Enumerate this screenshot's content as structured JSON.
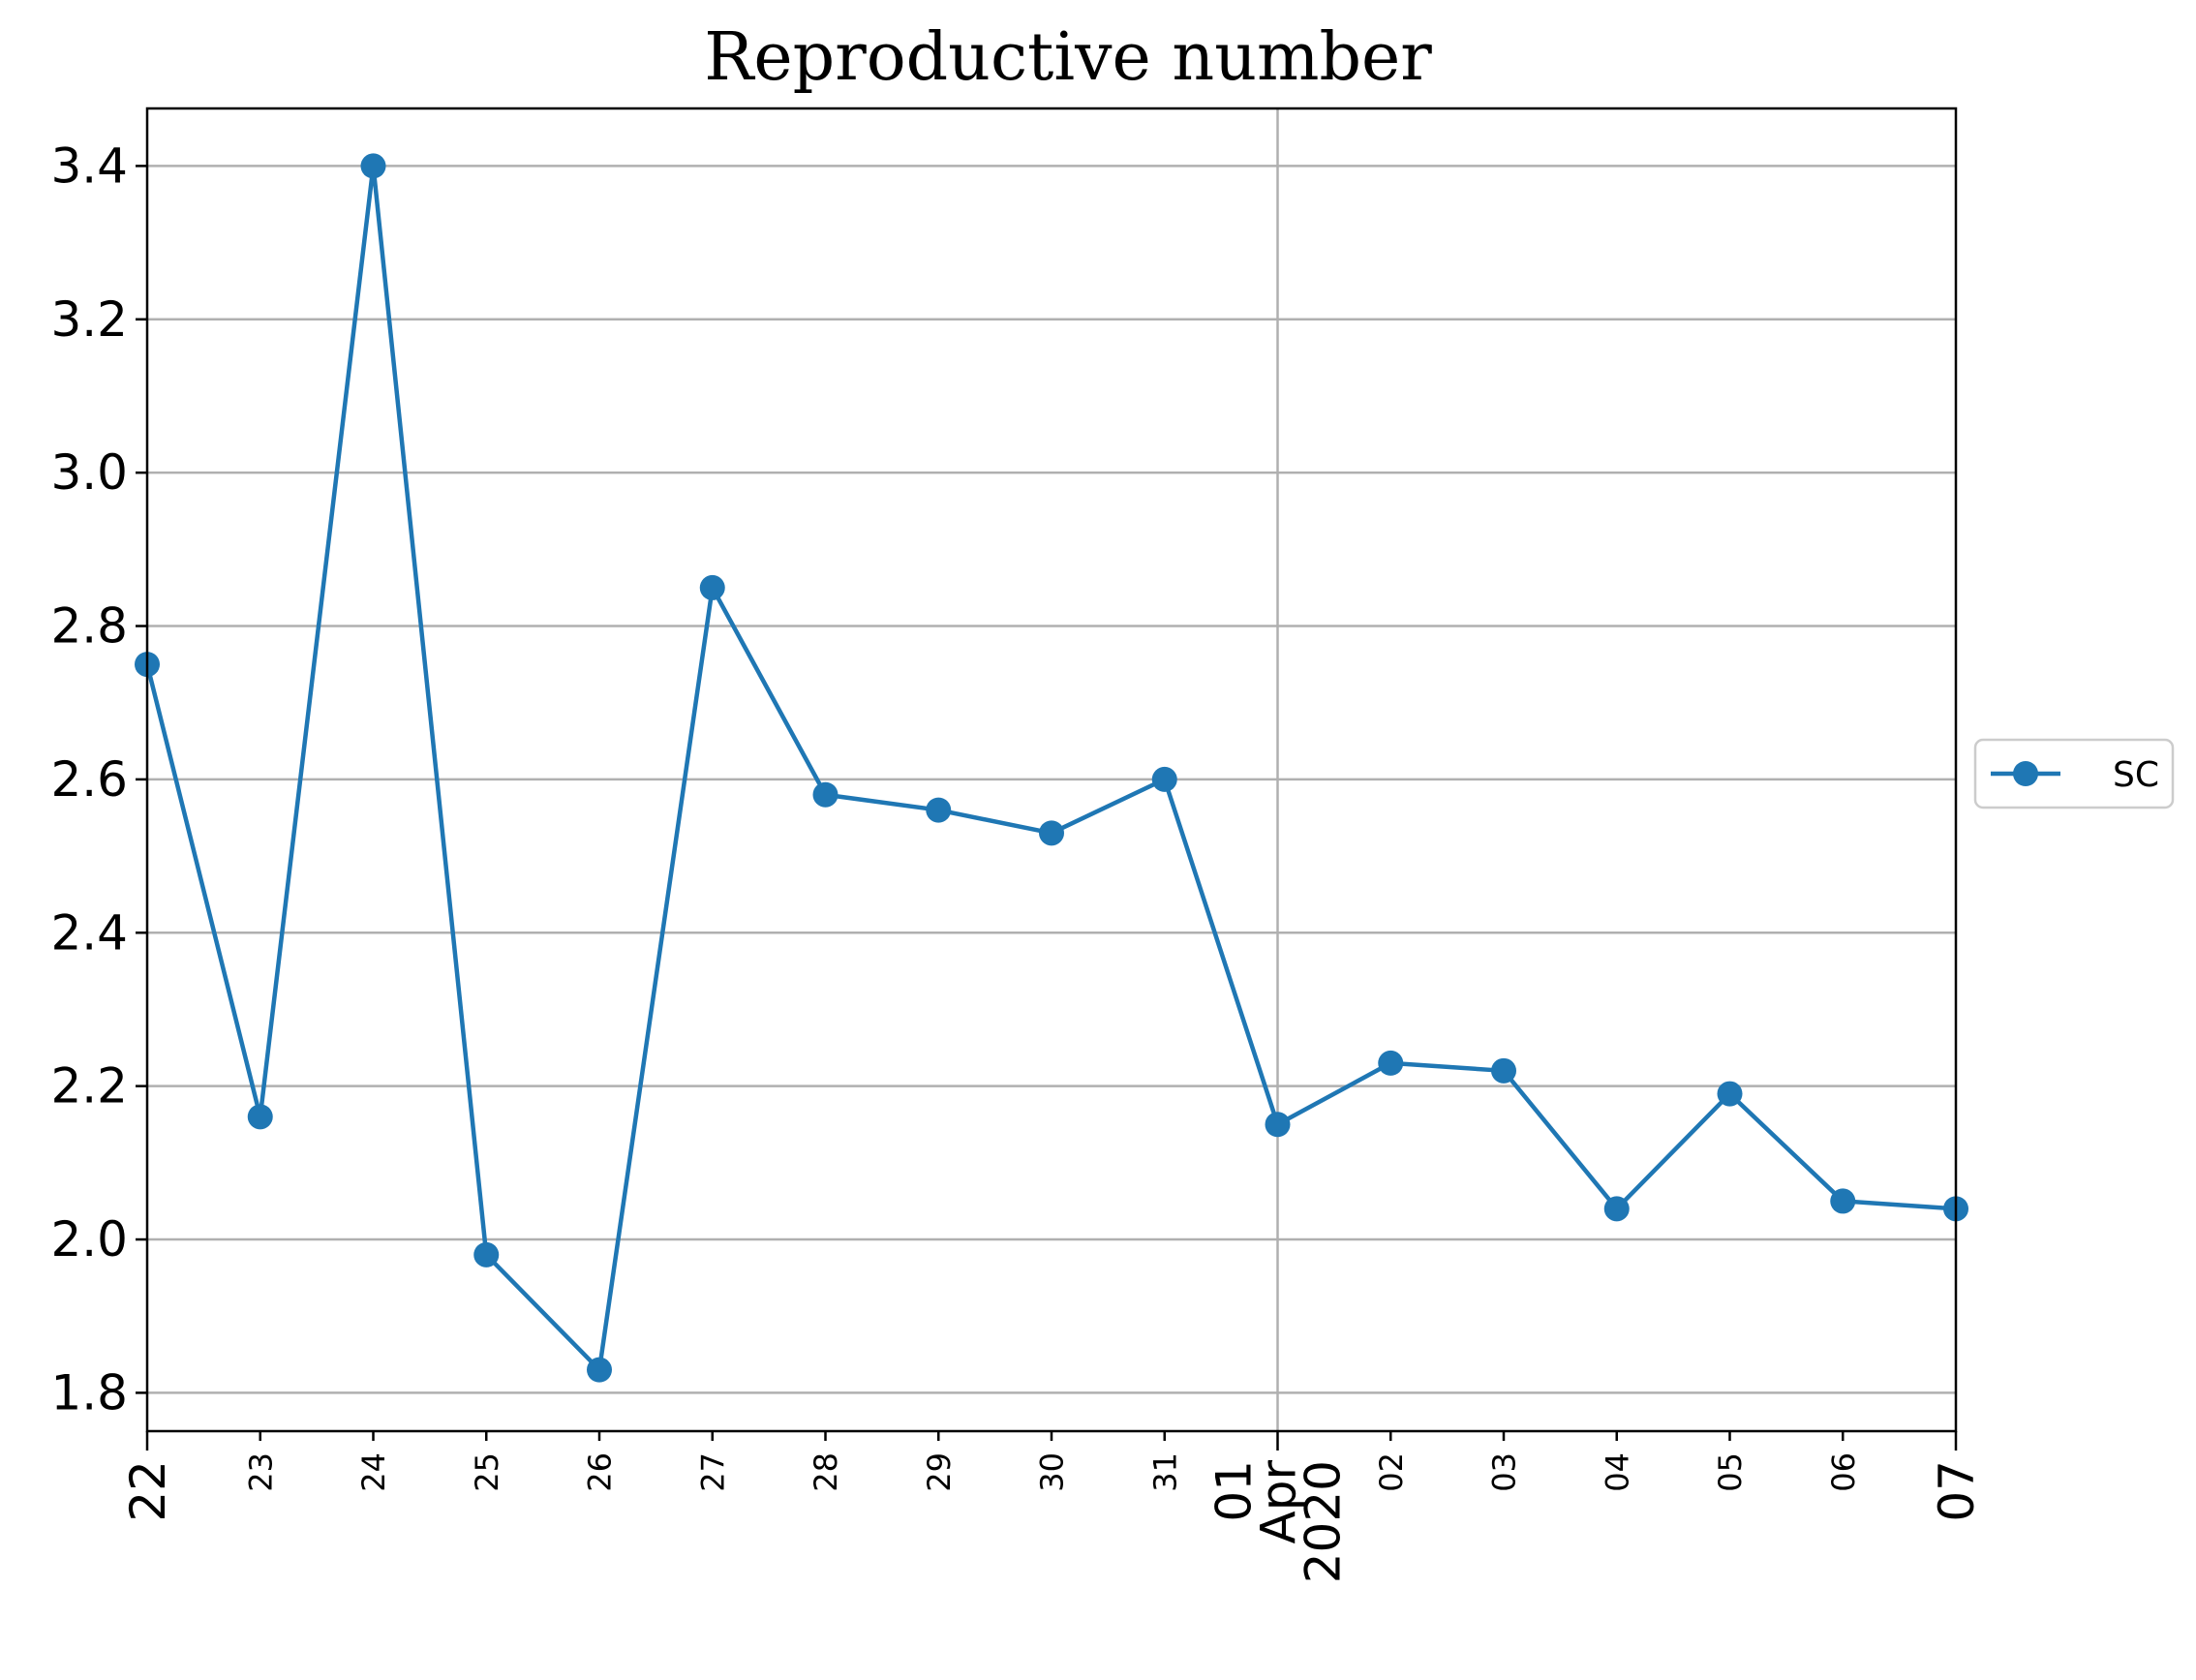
{
  "chart_data": {
    "type": "line",
    "title": "Reproductive number",
    "xlabel": "",
    "ylabel": "",
    "x": [
      "2020-03-22",
      "2020-03-23",
      "2020-03-24",
      "2020-03-25",
      "2020-03-26",
      "2020-03-27",
      "2020-03-28",
      "2020-03-29",
      "2020-03-30",
      "2020-03-31",
      "2020-04-01",
      "2020-04-02",
      "2020-04-03",
      "2020-04-04",
      "2020-04-05",
      "2020-04-06",
      "2020-04-07"
    ],
    "x_tick_labels": [
      {
        "text": "22",
        "major": true
      },
      {
        "text": "23",
        "major": false
      },
      {
        "text": "24",
        "major": false
      },
      {
        "text": "25",
        "major": false
      },
      {
        "text": "26",
        "major": false
      },
      {
        "text": "27",
        "major": false
      },
      {
        "text": "28",
        "major": false
      },
      {
        "text": "29",
        "major": false
      },
      {
        "text": "30",
        "major": false
      },
      {
        "text": "31",
        "major": false
      },
      {
        "text": "01\nApr\n2020",
        "major": true
      },
      {
        "text": "02",
        "major": false
      },
      {
        "text": "03",
        "major": false
      },
      {
        "text": "04",
        "major": false
      },
      {
        "text": "05",
        "major": false
      },
      {
        "text": "06",
        "major": false
      },
      {
        "text": "07",
        "major": true
      }
    ],
    "series": [
      {
        "name": "SC",
        "color": "#1f77b4",
        "marker": "circle",
        "values": [
          2.75,
          2.16,
          3.4,
          1.98,
          1.83,
          2.85,
          2.58,
          2.56,
          2.53,
          2.6,
          2.15,
          2.23,
          2.22,
          2.04,
          2.19,
          2.05,
          2.04
        ]
      }
    ],
    "ylim": [
      1.75,
      3.475
    ],
    "yticks": [
      "1.8",
      "2.0",
      "2.2",
      "2.4",
      "2.6",
      "2.8",
      "3.0",
      "3.2",
      "3.4"
    ],
    "ytick_values": [
      1.8,
      2.0,
      2.2,
      2.4,
      2.6,
      2.8,
      3.0,
      3.2,
      3.4
    ],
    "grid": "horizontal lines at y ticks; vertical line at month boundary (01 Apr)",
    "legend_position": "right, outside plot"
  }
}
